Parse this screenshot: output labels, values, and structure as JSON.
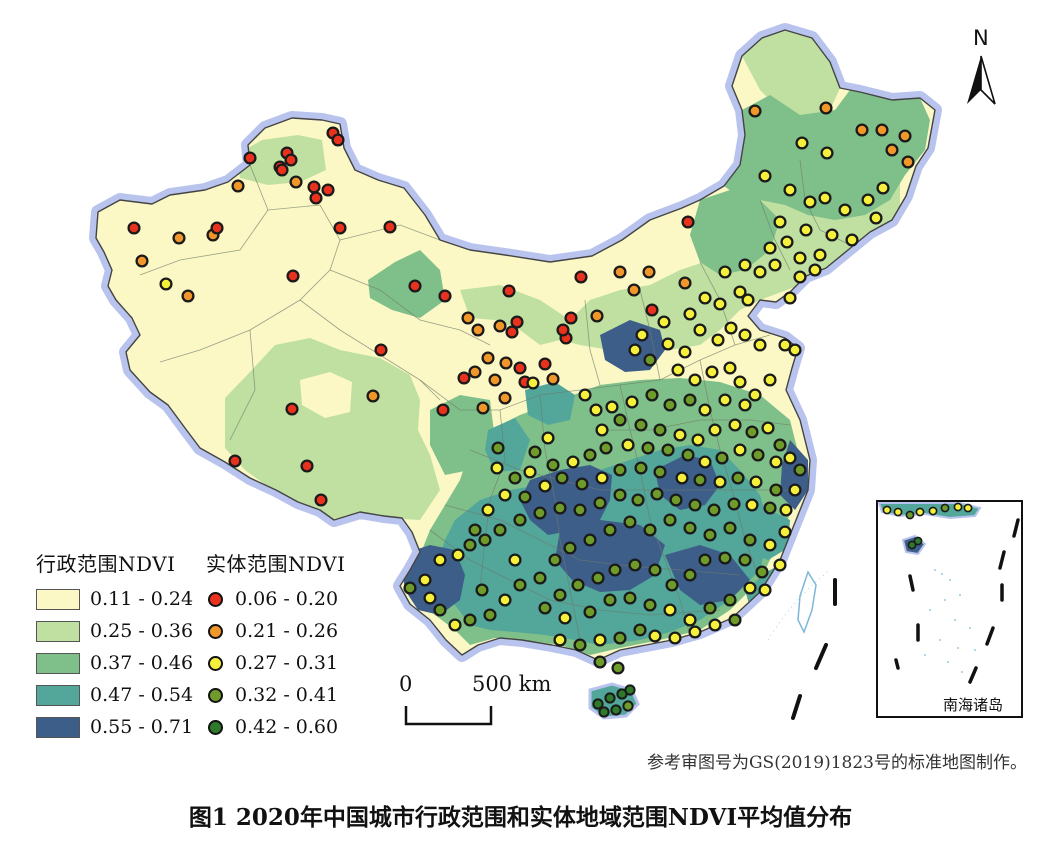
{
  "caption": "图1 2020年中国城市行政范围和实体地域范围NDVI平均值分布",
  "source_note": "参考审图号为GS(2019)1823号的标准地图制作。",
  "north_arrow": {
    "label": "N"
  },
  "scale_bar": {
    "start_label": "0",
    "end_label": "500 km"
  },
  "inset": {
    "label": "南海诸岛"
  },
  "legend_admin": {
    "title": "行政范围NDVI",
    "classes": [
      {
        "label": "0.11 - 0.24",
        "color": "#fbf8c6"
      },
      {
        "label": "0.25 - 0.36",
        "color": "#bfe0a0"
      },
      {
        "label": "0.37 - 0.46",
        "color": "#7fc08a"
      },
      {
        "label": "0.47 - 0.54",
        "color": "#52a69a"
      },
      {
        "label": "0.55 - 0.71",
        "color": "#3e5e8a"
      }
    ]
  },
  "legend_entity": {
    "title": "实体范围NDVI",
    "classes": [
      {
        "label": "0.06 - 0.20",
        "color": "#e8321e"
      },
      {
        "label": "0.21 - 0.26",
        "color": "#f0962a"
      },
      {
        "label": "0.27 - 0.31",
        "color": "#f5f03c"
      },
      {
        "label": "0.32 - 0.41",
        "color": "#6e9b2a"
      },
      {
        "label": "0.42 - 0.60",
        "color": "#2e7a2a"
      }
    ]
  },
  "colors": {
    "border_glow": "#b9c4ee",
    "outline": "#444444",
    "water": "#7db7d8"
  }
}
